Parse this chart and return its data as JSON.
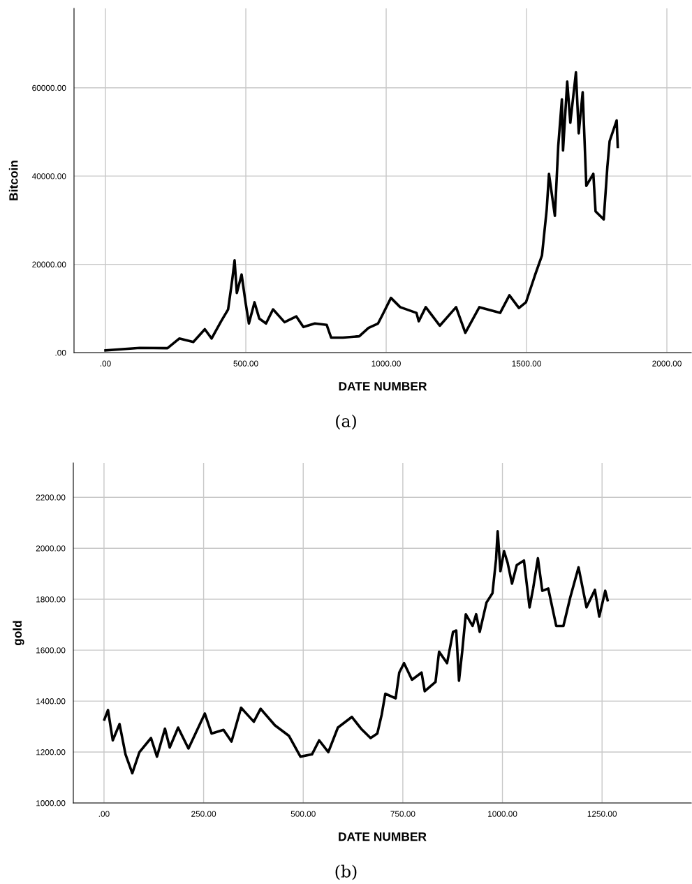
{
  "chart_data": [
    {
      "type": "line",
      "xlabel": "DATE NUMBER",
      "ylabel": "Bitcoin",
      "annotations": [
        "(a)"
      ],
      "grid": true,
      "legend": false,
      "marker": "none",
      "line_style": "solid",
      "xlim": [
        -112,
        2087
      ],
      "ylim": [
        0,
        78000
      ],
      "xticks": [
        {
          "value": 0,
          "label": ".00"
        },
        {
          "value": 500,
          "label": "500.00"
        },
        {
          "value": 1000,
          "label": "1000.00"
        },
        {
          "value": 1500,
          "label": "1500.00"
        },
        {
          "value": 2000,
          "label": "2000.00"
        }
      ],
      "yticks": [
        {
          "value": 0,
          "label": ".00"
        },
        {
          "value": 20000,
          "label": "20000.00"
        },
        {
          "value": 40000,
          "label": "40000.00"
        },
        {
          "value": 60000,
          "label": "60000.00"
        }
      ],
      "series": [
        {
          "color": "#000000",
          "x": [
            0,
            122,
            221,
            263,
            313,
            354,
            378,
            412,
            437,
            452,
            460,
            468,
            485,
            499,
            511,
            531,
            548,
            572,
            597,
            638,
            680,
            705,
            746,
            788,
            804,
            846,
            904,
            937,
            971,
            988,
            1017,
            1050,
            1108,
            1116,
            1141,
            1191,
            1249,
            1282,
            1332,
            1406,
            1439,
            1473,
            1498,
            1531,
            1555,
            1572,
            1580,
            1601,
            1613,
            1626,
            1630,
            1645,
            1656,
            1676,
            1686,
            1700,
            1713,
            1738,
            1746,
            1775,
            1788,
            1796,
            1821,
            1825
          ],
          "values": [
            500,
            1060,
            1000,
            3200,
            2400,
            5300,
            3200,
            7100,
            9800,
            16700,
            20900,
            13500,
            17700,
            11400,
            6600,
            11400,
            7700,
            6600,
            9800,
            6900,
            8200,
            5800,
            6600,
            6300,
            3400,
            3400,
            3700,
            5600,
            6600,
            8700,
            12400,
            10300,
            9000,
            7100,
            10300,
            6100,
            10300,
            4500,
            10300,
            9000,
            13000,
            10100,
            11400,
            17700,
            22000,
            32500,
            40500,
            31000,
            46800,
            57400,
            45800,
            61400,
            52100,
            63500,
            49700,
            59000,
            37800,
            40500,
            32000,
            30200,
            42100,
            47900,
            52600,
            46600
          ]
        }
      ]
    },
    {
      "type": "line",
      "xlabel": "DATE NUMBER",
      "ylabel": "gold",
      "annotations": [
        "(b)"
      ],
      "grid": true,
      "legend": false,
      "marker": "none",
      "line_style": "solid",
      "xlim": [
        -77,
        1474
      ],
      "ylim": [
        1000,
        2335
      ],
      "xticks": [
        {
          "value": 0,
          "label": ".00"
        },
        {
          "value": 250,
          "label": "250.00"
        },
        {
          "value": 500,
          "label": "500.00"
        },
        {
          "value": 750,
          "label": "750.00"
        },
        {
          "value": 1000,
          "label": "1000.00"
        },
        {
          "value": 1250,
          "label": "1250.00"
        }
      ],
      "yticks": [
        {
          "value": 1000,
          "label": "1000.00"
        },
        {
          "value": 1200,
          "label": "1200.00"
        },
        {
          "value": 1400,
          "label": "1400.00"
        },
        {
          "value": 1600,
          "label": "1600.00"
        },
        {
          "value": 1800,
          "label": "1800.00"
        },
        {
          "value": 2000,
          "label": "2000.00"
        },
        {
          "value": 2200,
          "label": "2200.00"
        }
      ],
      "series": [
        {
          "color": "#000000",
          "x": [
            1,
            10,
            22,
            39,
            54,
            71,
            89,
            118,
            133,
            153,
            165,
            186,
            212,
            253,
            270,
            300,
            320,
            344,
            376,
            393,
            429,
            464,
            493,
            522,
            540,
            563,
            587,
            622,
            645,
            669,
            686,
            697,
            706,
            732,
            741,
            753,
            773,
            797,
            805,
            832,
            841,
            861,
            876,
            884,
            891,
            899,
            908,
            925,
            934,
            943,
            960,
            975,
            984,
            988,
            995,
            1004,
            1013,
            1024,
            1036,
            1054,
            1068,
            1077,
            1089,
            1100,
            1115,
            1135,
            1153,
            1170,
            1191,
            1211,
            1232,
            1243,
            1258,
            1264
          ],
          "values": [
            1328,
            1365,
            1246,
            1310,
            1191,
            1117,
            1200,
            1255,
            1182,
            1292,
            1218,
            1296,
            1214,
            1351,
            1273,
            1287,
            1241,
            1374,
            1319,
            1370,
            1305,
            1264,
            1182,
            1191,
            1246,
            1200,
            1296,
            1338,
            1292,
            1255,
            1273,
            1347,
            1429,
            1411,
            1512,
            1549,
            1484,
            1512,
            1439,
            1475,
            1594,
            1549,
            1672,
            1677,
            1480,
            1594,
            1741,
            1695,
            1741,
            1672,
            1787,
            1824,
            1957,
            2067,
            1910,
            1989,
            1943,
            1861,
            1934,
            1952,
            1768,
            1842,
            1961,
            1833,
            1842,
            1695,
            1695,
            1806,
            1925,
            1768,
            1837,
            1732,
            1833,
            1796
          ]
        }
      ]
    }
  ]
}
